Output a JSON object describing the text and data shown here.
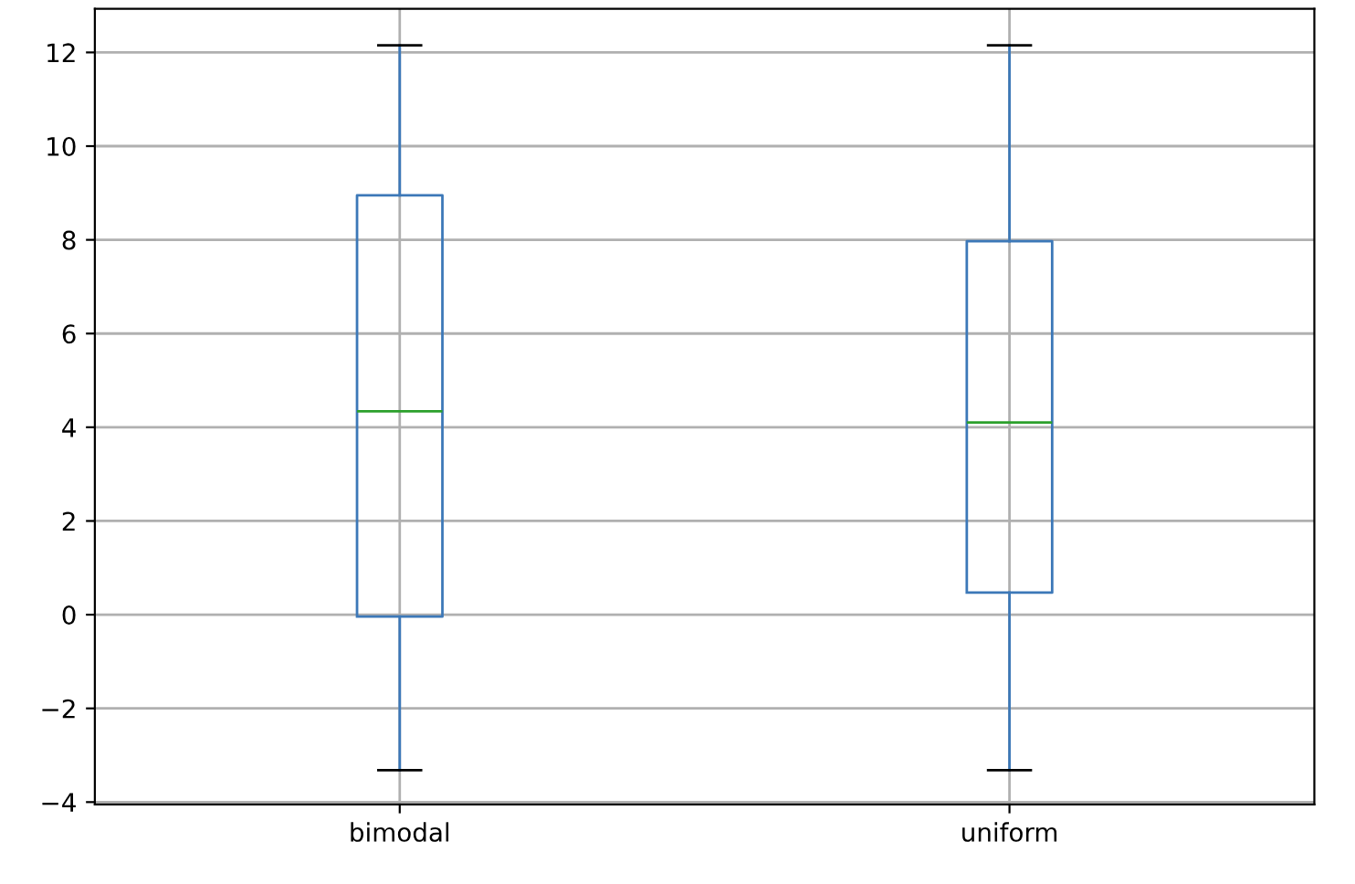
{
  "chart_data": {
    "type": "box",
    "categories": [
      "bimodal",
      "uniform"
    ],
    "series": [
      {
        "color": "#3c78b8",
        "boxes": [
          {
            "low": -3.32,
            "q1": -0.04,
            "median": 4.34,
            "q3": 8.95,
            "high": 12.15
          },
          {
            "low": -3.32,
            "q1": 0.47,
            "median": 4.1,
            "q3": 7.97,
            "high": 12.15
          }
        ]
      }
    ],
    "ylim": [
      -4.05,
      12.93
    ],
    "yticks": [
      {
        "value": -4,
        "label": "−4"
      },
      {
        "value": -2,
        "label": "−2"
      },
      0,
      2,
      4,
      6,
      8,
      10,
      12
    ],
    "grid": true
  }
}
